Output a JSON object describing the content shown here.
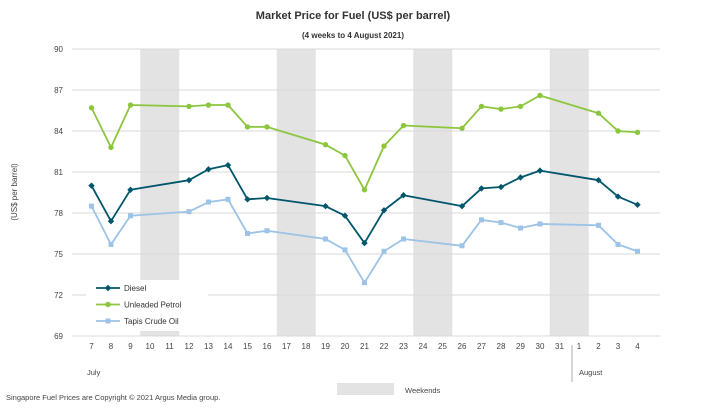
{
  "chart_data": {
    "type": "line",
    "title": "Market Price for Fuel  (US$  per barrel)",
    "subtitle": "(4 weeks to 4 August 2021)",
    "ylabel": "(US$ per barrel)",
    "ylim": [
      69,
      90
    ],
    "yticks": [
      "90",
      "87",
      "84",
      "81",
      "78",
      "75",
      "72",
      "69"
    ],
    "categories": [
      "7",
      "8",
      "9",
      "10",
      "11",
      "12",
      "13",
      "14",
      "15",
      "16",
      "17",
      "18",
      "19",
      "20",
      "21",
      "22",
      "23",
      "24",
      "25",
      "26",
      "27",
      "28",
      "29",
      "30",
      "31",
      "1",
      "2",
      "3",
      "4"
    ],
    "month_labels": [
      "July",
      "August"
    ],
    "weekend_label": "Weekends",
    "weekend_indices": [
      [
        3,
        4
      ],
      [
        10,
        11
      ],
      [
        17,
        18
      ],
      [
        24,
        25
      ]
    ],
    "footer": "Singapore  Fuel Prices are Copyright © 2021 Argus Media group.",
    "legend_position": "bottom-left",
    "grid": true,
    "series": [
      {
        "name": "Diesel",
        "color": "#00566b",
        "marker": "diamond",
        "values": [
          80.0,
          77.4,
          79.7,
          null,
          null,
          80.4,
          81.2,
          81.5,
          79.0,
          79.1,
          null,
          null,
          78.5,
          77.8,
          75.8,
          78.2,
          79.3,
          null,
          null,
          78.5,
          79.8,
          79.9,
          80.6,
          81.1,
          null,
          null,
          80.4,
          79.2,
          78.6
        ]
      },
      {
        "name": "Unleaded Petrol",
        "color": "#8cc63f",
        "marker": "circle",
        "values": [
          85.7,
          82.8,
          85.9,
          null,
          null,
          85.8,
          85.9,
          85.9,
          84.3,
          84.3,
          null,
          null,
          83.0,
          82.2,
          79.7,
          82.9,
          84.4,
          null,
          null,
          84.2,
          85.8,
          85.6,
          85.8,
          86.6,
          null,
          null,
          85.3,
          84.0,
          83.9
        ]
      },
      {
        "name": "Tapis Crude Oil",
        "color": "#9dc3e6",
        "marker": "square",
        "values": [
          78.5,
          75.7,
          77.8,
          null,
          null,
          78.1,
          78.8,
          79.0,
          76.5,
          76.7,
          null,
          null,
          76.1,
          75.3,
          72.9,
          75.2,
          76.1,
          null,
          null,
          75.6,
          77.5,
          77.3,
          76.9,
          77.2,
          null,
          null,
          77.1,
          75.7,
          75.2
        ]
      }
    ]
  }
}
